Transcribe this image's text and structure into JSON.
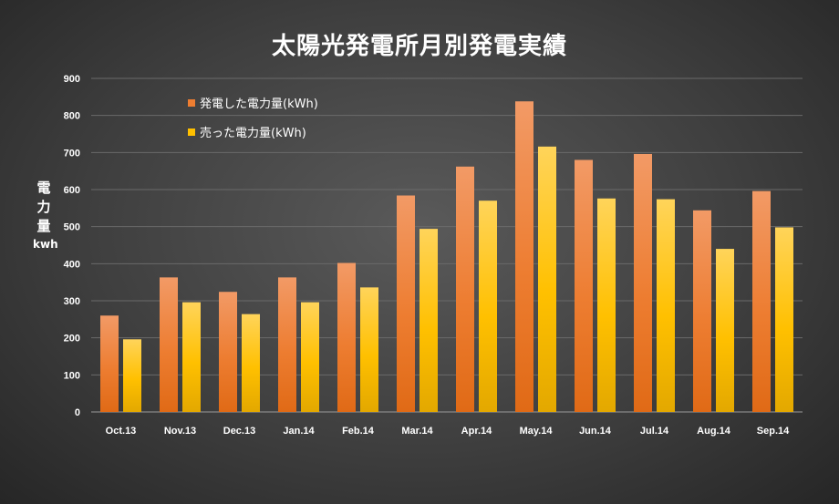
{
  "chart_data": {
    "type": "bar",
    "title": "太陽光発電所月別発電実績",
    "ylabel": [
      "電",
      "力",
      "量",
      "kwh"
    ],
    "xlabel": "",
    "ylim": [
      0,
      900
    ],
    "yticks": [
      0,
      100,
      200,
      300,
      400,
      500,
      600,
      700,
      800,
      900
    ],
    "grid": true,
    "legend_position": "top-left",
    "categories": [
      "Oct.13",
      "Nov.13",
      "Dec.13",
      "Jan.14",
      "Feb.14",
      "Mar.14",
      "Apr.14",
      "May.14",
      "Jun.14",
      "Jul.14",
      "Aug.14",
      "Sep.14"
    ],
    "series": [
      {
        "name": "発電した電力量(kWh)",
        "color": "#ED7D31",
        "values": [
          260,
          363,
          324,
          363,
          402,
          584,
          662,
          838,
          680,
          696,
          544,
          596
        ]
      },
      {
        "name": "売った電力量(kWh)",
        "color": "#FFC000",
        "values": [
          196,
          296,
          264,
          296,
          336,
          494,
          570,
          716,
          576,
          574,
          440,
          498
        ]
      }
    ]
  }
}
